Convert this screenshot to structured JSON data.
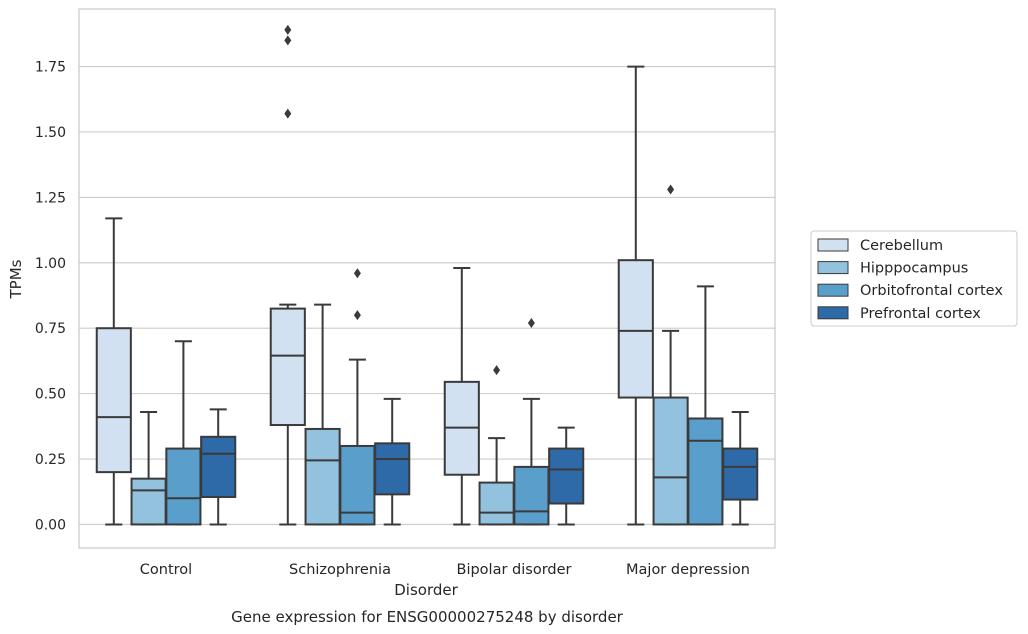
{
  "chart_data": {
    "type": "box",
    "title": "",
    "caption": "Gene expression for ENSG00000275248 by disorder",
    "xlabel": "Disorder",
    "ylabel": "TPMs",
    "ylim": [
      -0.09,
      1.97
    ],
    "yticks": [
      0.0,
      0.25,
      0.5,
      0.75,
      1.0,
      1.25,
      1.5,
      1.75
    ],
    "ytick_labels": [
      "0.00",
      "0.25",
      "0.50",
      "0.75",
      "1.00",
      "1.25",
      "1.50",
      "1.75"
    ],
    "grid": "horizontal",
    "legend_position": "right",
    "categories": [
      "Control",
      "Schizophrenia",
      "Bipolar disorder",
      "Major depression"
    ],
    "series": [
      {
        "name": "Cerebellum",
        "color": "#d1e1f1",
        "boxes": [
          {
            "whisker_low": 0.0,
            "q1": 0.2,
            "median": 0.41,
            "q3": 0.75,
            "whisker_high": 1.17,
            "outliers": []
          },
          {
            "whisker_low": 0.0,
            "q1": 0.38,
            "median": 0.645,
            "q3": 0.825,
            "whisker_high": 0.84,
            "outliers": [
              1.57,
              1.85,
              1.89
            ]
          },
          {
            "whisker_low": 0.0,
            "q1": 0.19,
            "median": 0.37,
            "q3": 0.545,
            "whisker_high": 0.98,
            "outliers": []
          },
          {
            "whisker_low": 0.0,
            "q1": 0.485,
            "median": 0.74,
            "q3": 1.01,
            "whisker_high": 1.75,
            "outliers": []
          }
        ]
      },
      {
        "name": "Hipppocampus",
        "color": "#93c2de",
        "boxes": [
          {
            "whisker_low": 0.0,
            "q1": 0.0,
            "median": 0.13,
            "q3": 0.175,
            "whisker_high": 0.43,
            "outliers": []
          },
          {
            "whisker_low": 0.0,
            "q1": 0.0,
            "median": 0.245,
            "q3": 0.365,
            "whisker_high": 0.84,
            "outliers": []
          },
          {
            "whisker_low": 0.0,
            "q1": 0.0,
            "median": 0.045,
            "q3": 0.16,
            "whisker_high": 0.33,
            "outliers": [
              0.59
            ]
          },
          {
            "whisker_low": 0.0,
            "q1": 0.0,
            "median": 0.18,
            "q3": 0.485,
            "whisker_high": 0.74,
            "outliers": [
              1.28
            ]
          }
        ]
      },
      {
        "name": "Orbitofrontal cortex",
        "color": "#5a9ecb",
        "boxes": [
          {
            "whisker_low": 0.0,
            "q1": 0.0,
            "median": 0.1,
            "q3": 0.29,
            "whisker_high": 0.7,
            "outliers": []
          },
          {
            "whisker_low": 0.0,
            "q1": 0.0,
            "median": 0.045,
            "q3": 0.3,
            "whisker_high": 0.63,
            "outliers": [
              0.8,
              0.96
            ]
          },
          {
            "whisker_low": 0.0,
            "q1": 0.0,
            "median": 0.05,
            "q3": 0.22,
            "whisker_high": 0.48,
            "outliers": [
              0.77
            ]
          },
          {
            "whisker_low": 0.0,
            "q1": 0.0,
            "median": 0.32,
            "q3": 0.405,
            "whisker_high": 0.91,
            "outliers": []
          }
        ]
      },
      {
        "name": "Prefrontal cortex",
        "color": "#2d6aa7",
        "boxes": [
          {
            "whisker_low": 0.0,
            "q1": 0.105,
            "median": 0.27,
            "q3": 0.335,
            "whisker_high": 0.44,
            "outliers": []
          },
          {
            "whisker_low": 0.0,
            "q1": 0.115,
            "median": 0.25,
            "q3": 0.31,
            "whisker_high": 0.48,
            "outliers": []
          },
          {
            "whisker_low": 0.0,
            "q1": 0.08,
            "median": 0.21,
            "q3": 0.29,
            "whisker_high": 0.37,
            "outliers": []
          },
          {
            "whisker_low": 0.0,
            "q1": 0.095,
            "median": 0.22,
            "q3": 0.29,
            "whisker_high": 0.43,
            "outliers": []
          }
        ]
      }
    ]
  }
}
